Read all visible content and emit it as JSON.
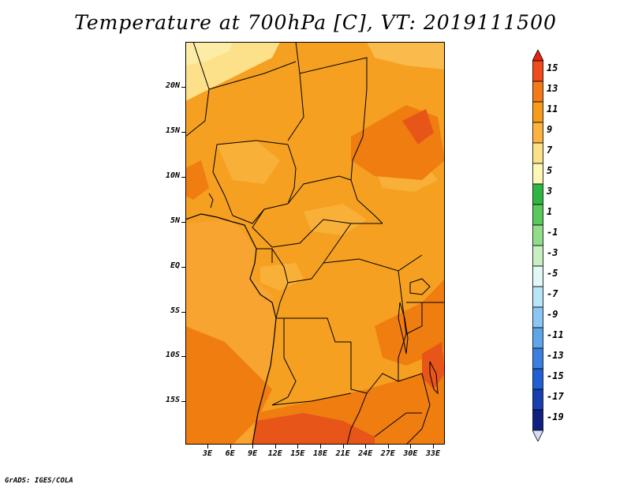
{
  "title": "Temperature at 700hPa [C], VT: 2019111500",
  "footer": "GrADS: IGES/COLA",
  "map": {
    "lat_ticks": [
      "20N",
      "15N",
      "10N",
      "5N",
      "EQ",
      "5S",
      "10S",
      "15S"
    ],
    "lon_ticks": [
      "3E",
      "6E",
      "9E",
      "12E",
      "15E",
      "18E",
      "21E",
      "24E",
      "27E",
      "30E",
      "33E"
    ],
    "fill_colors": {
      "c5_7": "#fde18a",
      "c7_9": "#f8b444",
      "c9_11": "#f5a020",
      "c11_13": "#f07d10",
      "c13_15": "#e85518",
      "ocean_cool": "#f7a932"
    },
    "border_color": "#000000"
  },
  "colorbar": {
    "labels": [
      "15",
      "13",
      "11",
      "9",
      "7",
      "5",
      "3",
      "1",
      "-1",
      "-3",
      "-5",
      "-7",
      "-9",
      "-11",
      "-13",
      "-15",
      "-17",
      "-19"
    ],
    "colors": [
      "#e32313",
      "#f04b18",
      "#f47a16",
      "#f89a1a",
      "#fbb33e",
      "#fce08a",
      "#fdf8b6",
      "#2fb544",
      "#5ac95c",
      "#92dd8a",
      "#c8efc2",
      "#e3f8f6",
      "#b9e5f8",
      "#8ac7f2",
      "#5ea6ea",
      "#3b80e0",
      "#1f5fd3",
      "#173fb0",
      "#102080",
      "#d8dcf5"
    ]
  }
}
